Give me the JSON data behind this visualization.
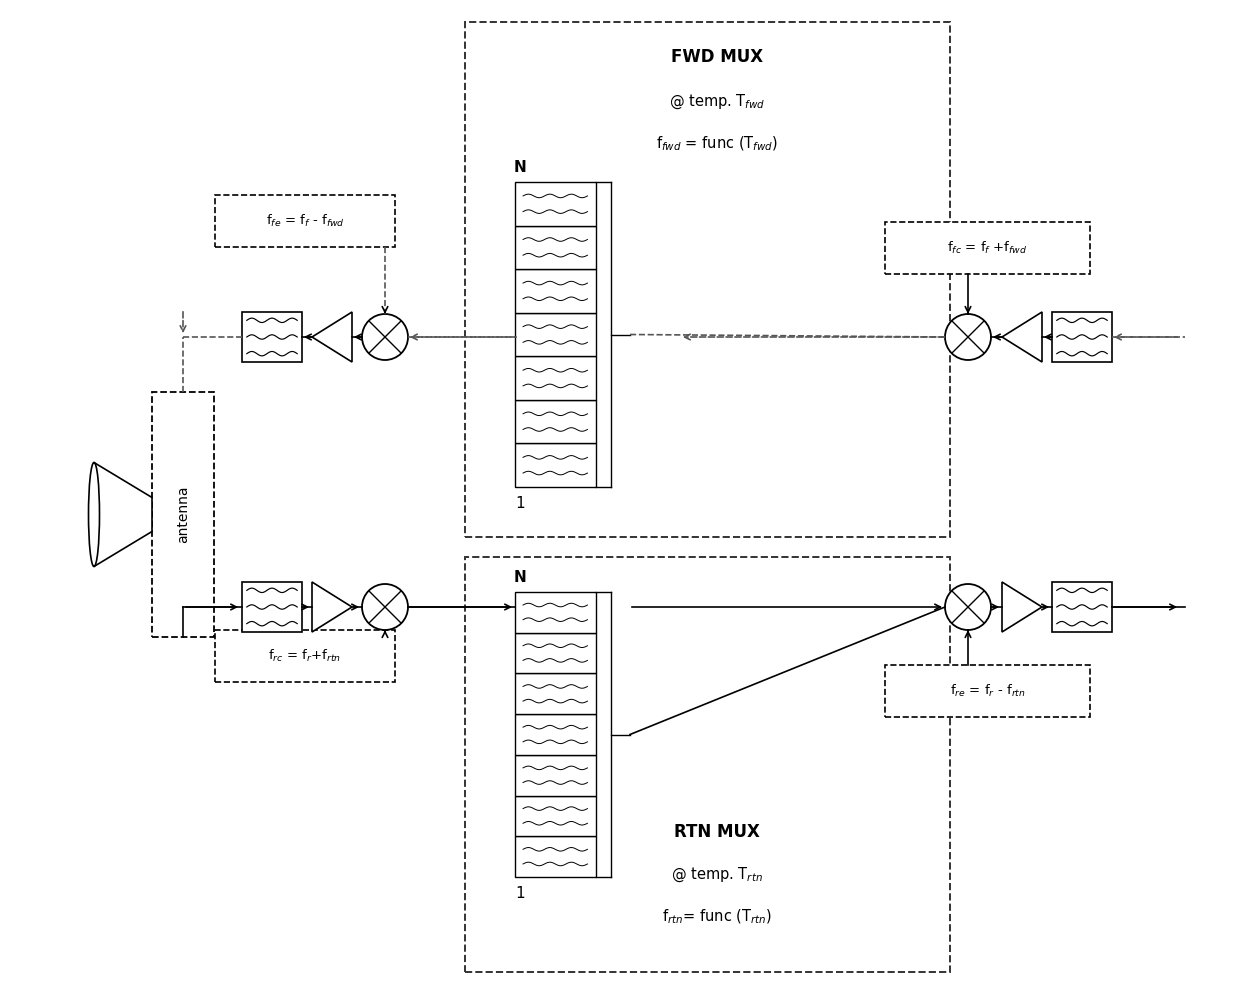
{
  "bg_color": "#ffffff",
  "lc": "#000000",
  "dc": "#555555",
  "fwd_mux_title": "FWD MUX",
  "fwd_mux_line2": "@ temp. T$_{fwd}$",
  "fwd_mux_line3": "f$_{fwd}$ = func (T$_{fwd}$)",
  "rtn_mux_title": "RTN MUX",
  "rtn_mux_line2": "@ temp. T$_{rtn}$",
  "rtn_mux_line3": "f$_{rtn}$= func (T$_{rtn}$)",
  "antenna_label": "antenna",
  "ffe_formula": "f$_{fe}$ = f$_{f}$ - f$_{fwd}$",
  "frc_formula": "f$_{rc}$ = f$_{r}$+f$_{rtn}$",
  "ffc_formula": "f$_{fc}$ = f$_{f}$ +f$_{fwd}$",
  "fre_formula": "f$_{re}$ = f$_{r}$ - f$_{rtn}$",
  "N_label": "N",
  "one_label": "1",
  "figw": 12.4,
  "figh": 9.92,
  "dpi": 100,
  "xlim": [
    0,
    12.4
  ],
  "ylim": [
    0,
    9.92
  ]
}
